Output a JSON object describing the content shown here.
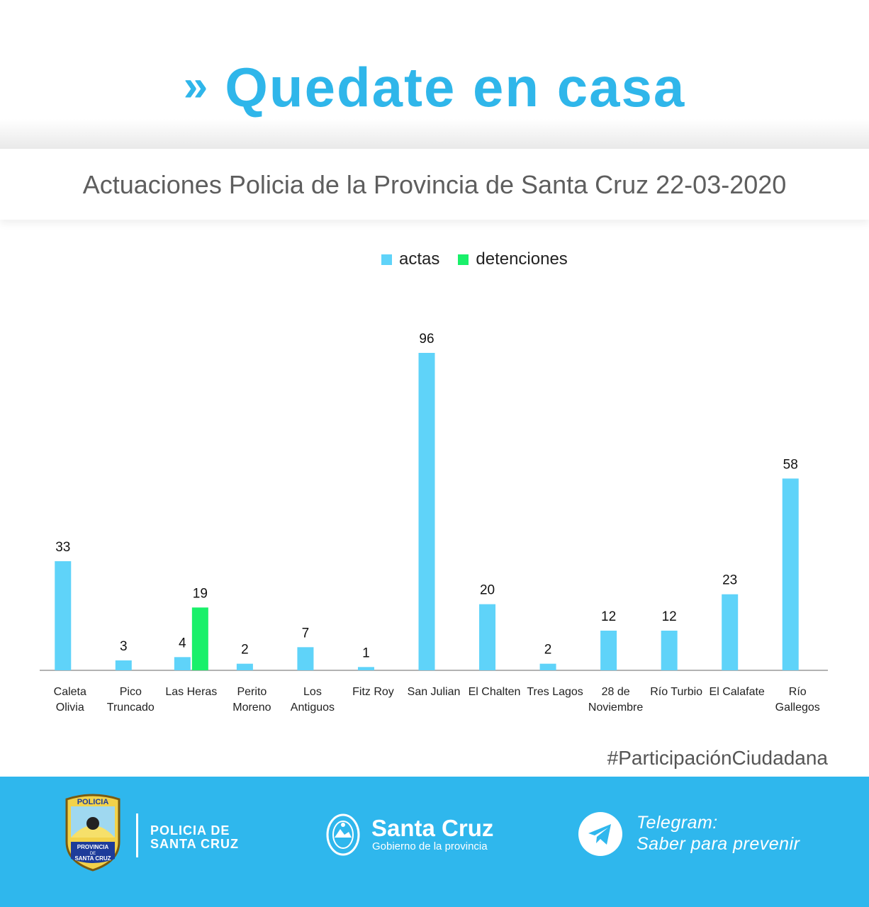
{
  "header": {
    "chevrons": "»",
    "title": "Quedate en casa"
  },
  "subtitle": "Actuaciones Policia de la Provincia de Santa Cruz 22-03-2020",
  "chart_data": {
    "type": "bar",
    "title": "Actuaciones Policia de la Provincia de Santa Cruz 22-03-2020",
    "categories": [
      [
        "Caleta",
        "Olivia"
      ],
      [
        "Pico",
        "Truncado"
      ],
      [
        "Las Heras"
      ],
      [
        "Perito",
        "Moreno"
      ],
      [
        "Los",
        "Antiguos"
      ],
      [
        "Fitz Roy"
      ],
      [
        "San Julian"
      ],
      [
        "El Chalten"
      ],
      [
        "Tres Lagos"
      ],
      [
        "28 de",
        "Noviembre"
      ],
      [
        "Río Turbio"
      ],
      [
        "El Calafate"
      ],
      [
        "Río",
        "Gallegos"
      ]
    ],
    "series": [
      {
        "name": "actas",
        "color": "#5fd3f9",
        "values": [
          33,
          3,
          4,
          2,
          7,
          1,
          96,
          20,
          2,
          12,
          12,
          23,
          58
        ]
      },
      {
        "name": "detenciones",
        "color": "#19f06a",
        "values": [
          null,
          null,
          19,
          null,
          null,
          null,
          null,
          null,
          null,
          null,
          null,
          null,
          null
        ]
      }
    ],
    "ylim": [
      0,
      96
    ],
    "legend_position": "top-center",
    "grid": false
  },
  "hashtag": "#ParticipaciónCiudadana",
  "footer": {
    "policia_line1": "POLICIA DE",
    "policia_line2": "SANTA CRUZ",
    "badge_top": "POLICIA",
    "badge_line1": "PROVINCIA",
    "badge_line2": "DE",
    "badge_line3": "SANTA CRUZ",
    "gov_title": "Santa Cruz",
    "gov_subtitle": "Gobierno de la provincia",
    "telegram_line1": "Telegram:",
    "telegram_line2": "Saber para prevenir"
  },
  "colors": {
    "brand": "#2fb6ea",
    "footer": "#2fb7ed"
  }
}
